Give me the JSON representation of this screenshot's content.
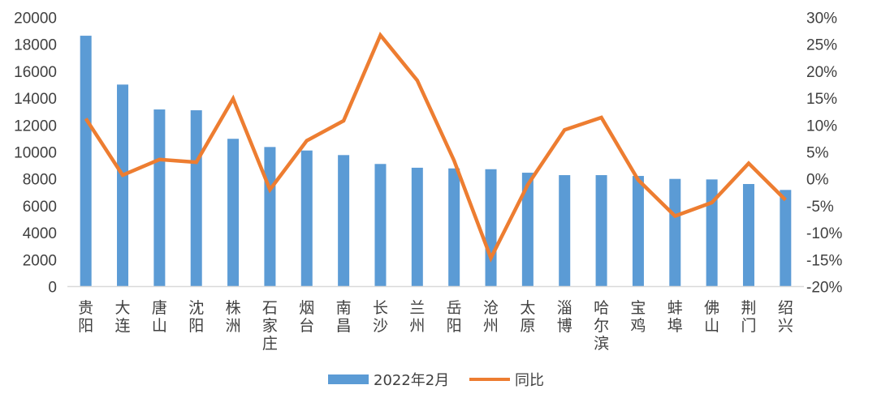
{
  "chart_data": {
    "type": "bar+line",
    "categories": [
      "贵阳",
      "大连",
      "唐山",
      "沈阳",
      "株洲",
      "石家庄",
      "烟台",
      "南昌",
      "长沙",
      "兰州",
      "岳阳",
      "沧州",
      "太原",
      "淄博",
      "哈尔滨",
      "宝鸡",
      "蚌埠",
      "佛山",
      "荆门",
      "绍兴"
    ],
    "series": [
      {
        "name": "2022年2月",
        "type": "bar",
        "axis": "left",
        "color": "#5B9BD5",
        "values": [
          18640,
          15010,
          13160,
          13100,
          10980,
          10370,
          10110,
          9770,
          9110,
          8830,
          8780,
          8720,
          8460,
          8280,
          8280,
          8220,
          8000,
          7960,
          7620,
          7180
        ]
      },
      {
        "name": "同比",
        "type": "line",
        "axis": "right",
        "color": "#ED7D31",
        "values": [
          11.2,
          0.7,
          3.6,
          3.1,
          14.9,
          -2.0,
          7.1,
          10.8,
          26.7,
          18.3,
          3.4,
          -14.7,
          -1.1,
          9.1,
          11.4,
          -0.2,
          -6.9,
          -4.4,
          2.9,
          -3.9
        ]
      }
    ],
    "y_left": {
      "range": [
        0,
        20000
      ],
      "ticks": [
        "0",
        "2000",
        "4000",
        "6000",
        "8000",
        "10000",
        "12000",
        "14000",
        "16000",
        "18000",
        "20000"
      ]
    },
    "y_right": {
      "range": [
        -20,
        30
      ],
      "unit": "%",
      "ticks": [
        "-20%",
        "-15%",
        "-10%",
        "-5%",
        "0%",
        "5%",
        "10%",
        "15%",
        "20%",
        "25%",
        "30%"
      ]
    },
    "grid": false,
    "legend": "bottom"
  }
}
